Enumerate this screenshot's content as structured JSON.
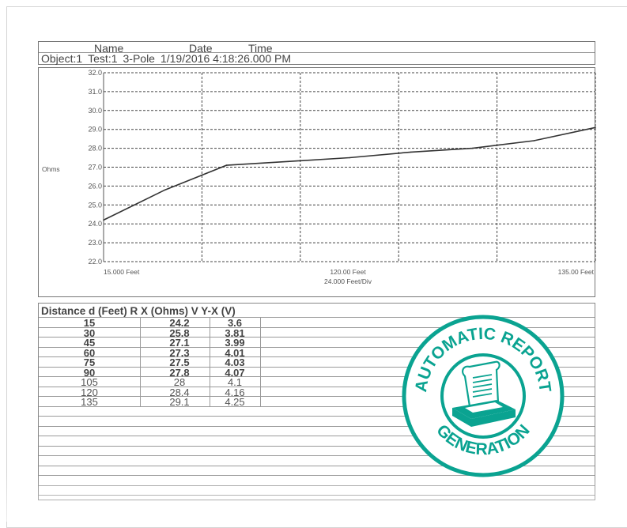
{
  "header": {
    "name_label": "Name",
    "date_label": "Date",
    "time_label": "Time",
    "object": "Object:1",
    "test": "Test:1",
    "pole": "3-Pole",
    "datetime": "1/19/2016 4:18:26.000 PM"
  },
  "chart_data": {
    "type": "line",
    "ylabel": "Ohms",
    "ylim": [
      22.0,
      32.0
    ],
    "yticks": [
      "32.0",
      "31.0",
      "30.0",
      "29.0",
      "28.0",
      "27.0",
      "26.0",
      "25.0",
      "24.0",
      "23.0",
      "22.0"
    ],
    "xlim": [
      15,
      135
    ],
    "x_start_label": "15.000 Feet",
    "x_mid_label": "120.00 Feet",
    "x_div_label": "24.000 Feet/Div",
    "x_end_label": "135.00 Feet",
    "grid": true,
    "series": [
      {
        "x": [
          15,
          30,
          45,
          60,
          75,
          90,
          105,
          120,
          135
        ],
        "values": [
          24.2,
          25.8,
          27.1,
          27.3,
          27.5,
          27.8,
          28.0,
          28.4,
          29.1
        ]
      }
    ]
  },
  "table": {
    "header": "Distance d (Feet) R X (Ohms) V Y-X (V)",
    "rows": [
      [
        "15",
        "24.2",
        "3.6"
      ],
      [
        "30",
        "25.8",
        "3.81"
      ],
      [
        "45",
        "27.1",
        "3.99"
      ],
      [
        "60",
        "27.3",
        "4.01"
      ],
      [
        "75",
        "27.5",
        "4.03"
      ],
      [
        "90",
        "27.8",
        "4.07"
      ],
      [
        "105",
        "28",
        "4.1"
      ],
      [
        "120",
        "28.4",
        "4.16"
      ],
      [
        "135",
        "29.1",
        "4.25"
      ]
    ]
  },
  "badge": {
    "top_text": "AUTOMATIC REPORT",
    "bottom_text": "GENERATION",
    "color": "#0aa391"
  }
}
